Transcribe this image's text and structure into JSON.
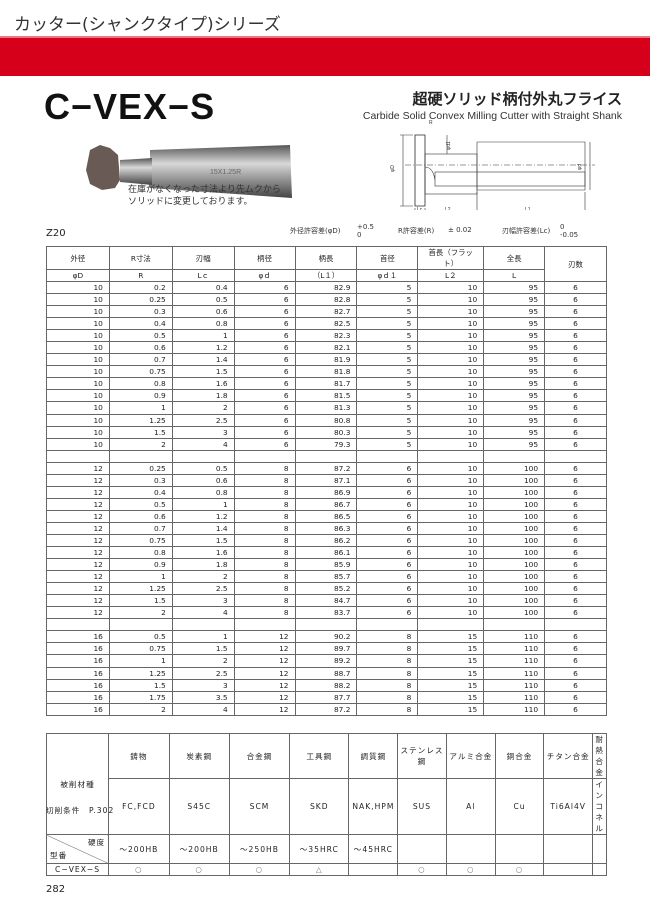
{
  "header": {
    "series": "カッター(シャンクタイプ)シリーズ",
    "model": "C−VEX−S",
    "jp_title": "超硬ソリッド柄付外丸フライス",
    "en_title": "Carbide Solid Convex Milling Cutter with Straight Shank",
    "accent": "#d7001a"
  },
  "photo": {
    "marking": "15X1.25R"
  },
  "note": [
    "在庫がなくなった寸法より先ムクから",
    "ソリッドに変更しております。"
  ],
  "diagram": {
    "labels": {
      "R": "R",
      "d1": "φd1",
      "D": "φD",
      "d": "φd",
      "Lc": "Lc",
      "L2": "L2",
      "L1": "L1",
      "L": "L"
    }
  },
  "grade": "Z20",
  "tolerances": {
    "D_label": "外径許容差(φD)",
    "D_upper": "+0.5",
    "D_lower": "0",
    "R_label": "R許容差(R)",
    "R_value": "± 0.02",
    "Lc_label": "刃幅許容差(Lc)",
    "Lc_upper": "0",
    "Lc_lower": "-0.05"
  },
  "spec_table": {
    "headers_jp": [
      "外径",
      "R寸法",
      "刃幅",
      "柄径",
      "柄長",
      "首径",
      "首長（フラット）",
      "全長",
      "刃数"
    ],
    "headers_sym": [
      "φD",
      "R",
      "Lｃ",
      "φｄ",
      "（L１）",
      "φｄ１",
      "L２",
      "L"
    ],
    "rows": [
      [
        "10",
        "0.2",
        "0.4",
        "6",
        "82.9",
        "5",
        "10",
        "95",
        "6"
      ],
      [
        "10",
        "0.25",
        "0.5",
        "6",
        "82.8",
        "5",
        "10",
        "95",
        "6"
      ],
      [
        "10",
        "0.3",
        "0.6",
        "6",
        "82.7",
        "5",
        "10",
        "95",
        "6"
      ],
      [
        "10",
        "0.4",
        "0.8",
        "6",
        "82.5",
        "5",
        "10",
        "95",
        "6"
      ],
      [
        "10",
        "0.5",
        "1",
        "6",
        "82.3",
        "5",
        "10",
        "95",
        "6"
      ],
      [
        "10",
        "0.6",
        "1.2",
        "6",
        "82.1",
        "5",
        "10",
        "95",
        "6"
      ],
      [
        "10",
        "0.7",
        "1.4",
        "6",
        "81.9",
        "5",
        "10",
        "95",
        "6"
      ],
      [
        "10",
        "0.75",
        "1.5",
        "6",
        "81.8",
        "5",
        "10",
        "95",
        "6"
      ],
      [
        "10",
        "0.8",
        "1.6",
        "6",
        "81.7",
        "5",
        "10",
        "95",
        "6"
      ],
      [
        "10",
        "0.9",
        "1.8",
        "6",
        "81.5",
        "5",
        "10",
        "95",
        "6"
      ],
      [
        "10",
        "1",
        "2",
        "6",
        "81.3",
        "5",
        "10",
        "95",
        "6"
      ],
      [
        "10",
        "1.25",
        "2.5",
        "6",
        "80.8",
        "5",
        "10",
        "95",
        "6"
      ],
      [
        "10",
        "1.5",
        "3",
        "6",
        "80.3",
        "5",
        "10",
        "95",
        "6"
      ],
      [
        "10",
        "2",
        "4",
        "6",
        "79.3",
        "5",
        "10",
        "95",
        "6"
      ],
      [],
      [
        "12",
        "0.25",
        "0.5",
        "8",
        "87.2",
        "6",
        "10",
        "100",
        "6"
      ],
      [
        "12",
        "0.3",
        "0.6",
        "8",
        "87.1",
        "6",
        "10",
        "100",
        "6"
      ],
      [
        "12",
        "0.4",
        "0.8",
        "8",
        "86.9",
        "6",
        "10",
        "100",
        "6"
      ],
      [
        "12",
        "0.5",
        "1",
        "8",
        "86.7",
        "6",
        "10",
        "100",
        "6"
      ],
      [
        "12",
        "0.6",
        "1.2",
        "8",
        "86.5",
        "6",
        "10",
        "100",
        "6"
      ],
      [
        "12",
        "0.7",
        "1.4",
        "8",
        "86.3",
        "6",
        "10",
        "100",
        "6"
      ],
      [
        "12",
        "0.75",
        "1.5",
        "8",
        "86.2",
        "6",
        "10",
        "100",
        "6"
      ],
      [
        "12",
        "0.8",
        "1.6",
        "8",
        "86.1",
        "6",
        "10",
        "100",
        "6"
      ],
      [
        "12",
        "0.9",
        "1.8",
        "8",
        "85.9",
        "6",
        "10",
        "100",
        "6"
      ],
      [
        "12",
        "1",
        "2",
        "8",
        "85.7",
        "6",
        "10",
        "100",
        "6"
      ],
      [
        "12",
        "1.25",
        "2.5",
        "8",
        "85.2",
        "6",
        "10",
        "100",
        "6"
      ],
      [
        "12",
        "1.5",
        "3",
        "8",
        "84.7",
        "6",
        "10",
        "100",
        "6"
      ],
      [
        "12",
        "2",
        "4",
        "8",
        "83.7",
        "6",
        "10",
        "100",
        "6"
      ],
      [],
      [
        "16",
        "0.5",
        "1",
        "12",
        "90.2",
        "8",
        "15",
        "110",
        "6"
      ],
      [
        "16",
        "0.75",
        "1.5",
        "12",
        "89.7",
        "8",
        "15",
        "110",
        "6"
      ],
      [
        "16",
        "1",
        "2",
        "12",
        "89.2",
        "8",
        "15",
        "110",
        "6"
      ],
      [
        "16",
        "1.25",
        "2.5",
        "12",
        "88.7",
        "8",
        "15",
        "110",
        "6"
      ],
      [
        "16",
        "1.5",
        "3",
        "12",
        "88.2",
        "8",
        "15",
        "110",
        "6"
      ],
      [
        "16",
        "1.75",
        "3.5",
        "12",
        "87.7",
        "8",
        "15",
        "110",
        "6"
      ],
      [
        "16",
        "2",
        "4",
        "12",
        "87.2",
        "8",
        "15",
        "110",
        "6"
      ]
    ]
  },
  "material_table": {
    "row_label": "被削材種",
    "hardness_label": "硬度",
    "model_label": "型番",
    "materials": [
      "鋳物",
      "炭素鋼",
      "合金鋼",
      "工具鋼",
      "調質鋼",
      "ステンレス鋼",
      "アルミ合金",
      "銅合金",
      "チタン合金",
      "耐熱合金"
    ],
    "grades": [
      "FC,FCD",
      "S45C",
      "SCM",
      "SKD",
      "NAK,HPM",
      "SUS",
      "Al",
      "Cu",
      "Ti6Al4V",
      "インコネル"
    ],
    "hardness": [
      "～200HB",
      "～200HB",
      "～250HB",
      "～35HRC",
      "～45HRC",
      "",
      "",
      "",
      "",
      ""
    ],
    "product": "C−VEX−S",
    "suitability": [
      "○",
      "○",
      "○",
      "△",
      "",
      "○",
      "○",
      "○",
      "",
      ""
    ]
  },
  "cutting_conditions": "切削条件　P.302",
  "page_number": "282"
}
